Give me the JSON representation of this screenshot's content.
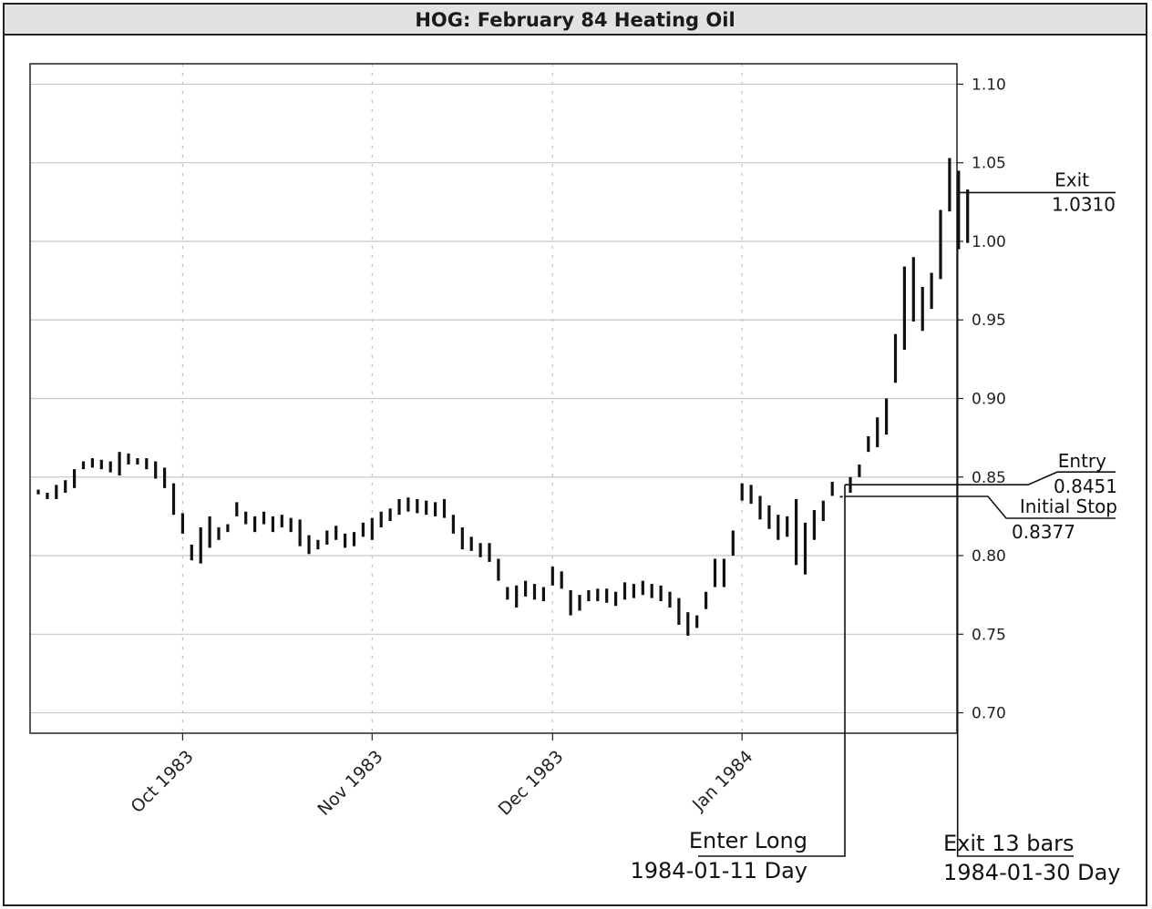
{
  "chart_data": {
    "type": "ohlc-bar",
    "title": "HOG: February 84 Heating Oil",
    "ylim": [
      0.687,
      1.113
    ],
    "y_ticks": [
      "1.10",
      "1.05",
      "1.00",
      "0.95",
      "0.90",
      "0.85",
      "0.80",
      "0.75",
      "0.70"
    ],
    "y_tick_values": [
      1.1,
      1.05,
      1.0,
      0.95,
      0.9,
      0.85,
      0.8,
      0.75,
      0.7
    ],
    "x_ticks": [
      "Oct 1983",
      "Nov 1983",
      "Dec 1983",
      "Jan 1984"
    ],
    "x_tick_bar_index": [
      16,
      37,
      57,
      78
    ],
    "grid": true,
    "bars": [
      [
        0.842,
        0.839
      ],
      [
        0.84,
        0.836
      ],
      [
        0.845,
        0.836
      ],
      [
        0.848,
        0.84
      ],
      [
        0.855,
        0.843
      ],
      [
        0.86,
        0.855
      ],
      [
        0.862,
        0.856
      ],
      [
        0.861,
        0.855
      ],
      [
        0.86,
        0.853
      ],
      [
        0.866,
        0.851
      ],
      [
        0.865,
        0.858
      ],
      [
        0.862,
        0.858
      ],
      [
        0.862,
        0.855
      ],
      [
        0.86,
        0.849
      ],
      [
        0.856,
        0.843
      ],
      [
        0.846,
        0.826
      ],
      [
        0.827,
        0.814
      ],
      [
        0.807,
        0.797
      ],
      [
        0.818,
        0.795
      ],
      [
        0.825,
        0.805
      ],
      [
        0.818,
        0.81
      ],
      [
        0.82,
        0.815
      ],
      [
        0.834,
        0.825
      ],
      [
        0.828,
        0.82
      ],
      [
        0.825,
        0.815
      ],
      [
        0.828,
        0.82
      ],
      [
        0.825,
        0.815
      ],
      [
        0.826,
        0.818
      ],
      [
        0.824,
        0.815
      ],
      [
        0.823,
        0.806
      ],
      [
        0.813,
        0.801
      ],
      [
        0.81,
        0.804
      ],
      [
        0.816,
        0.807
      ],
      [
        0.819,
        0.81
      ],
      [
        0.814,
        0.805
      ],
      [
        0.815,
        0.806
      ],
      [
        0.821,
        0.812
      ],
      [
        0.824,
        0.81
      ],
      [
        0.828,
        0.818
      ],
      [
        0.83,
        0.822
      ],
      [
        0.836,
        0.826
      ],
      [
        0.837,
        0.828
      ],
      [
        0.836,
        0.827
      ],
      [
        0.835,
        0.826
      ],
      [
        0.834,
        0.825
      ],
      [
        0.836,
        0.824
      ],
      [
        0.826,
        0.814
      ],
      [
        0.818,
        0.804
      ],
      [
        0.812,
        0.803
      ],
      [
        0.808,
        0.799
      ],
      [
        0.808,
        0.796
      ],
      [
        0.798,
        0.784
      ],
      [
        0.78,
        0.772
      ],
      [
        0.781,
        0.767
      ],
      [
        0.784,
        0.774
      ],
      [
        0.782,
        0.772
      ],
      [
        0.78,
        0.771
      ],
      [
        0.793,
        0.781
      ],
      [
        0.79,
        0.779
      ],
      [
        0.778,
        0.762
      ],
      [
        0.775,
        0.765
      ],
      [
        0.778,
        0.771
      ],
      [
        0.779,
        0.771
      ],
      [
        0.779,
        0.77
      ],
      [
        0.777,
        0.768
      ],
      [
        0.783,
        0.772
      ],
      [
        0.782,
        0.773
      ],
      [
        0.784,
        0.775
      ],
      [
        0.782,
        0.773
      ],
      [
        0.781,
        0.771
      ],
      [
        0.777,
        0.767
      ],
      [
        0.773,
        0.756
      ],
      [
        0.764,
        0.749
      ],
      [
        0.762,
        0.754
      ],
      [
        0.777,
        0.766
      ],
      [
        0.798,
        0.78
      ],
      [
        0.798,
        0.78
      ],
      [
        0.816,
        0.8
      ],
      [
        0.846,
        0.835
      ],
      [
        0.845,
        0.833
      ],
      [
        0.838,
        0.823
      ],
      [
        0.832,
        0.817
      ],
      [
        0.826,
        0.81
      ],
      [
        0.825,
        0.812
      ],
      [
        0.836,
        0.794
      ],
      [
        0.821,
        0.788
      ],
      [
        0.829,
        0.81
      ],
      [
        0.835,
        0.822
      ],
      [
        0.847,
        0.838
      ],
      [
        0.838,
        0.837
      ],
      [
        0.85,
        0.84
      ],
      [
        0.858,
        0.85
      ],
      [
        0.876,
        0.866
      ],
      [
        0.888,
        0.869
      ],
      [
        0.9,
        0.877
      ],
      [
        0.941,
        0.91
      ],
      [
        0.984,
        0.931
      ],
      [
        0.99,
        0.949
      ],
      [
        0.971,
        0.943
      ],
      [
        0.98,
        0.957
      ],
      [
        1.02,
        0.976
      ],
      [
        1.053,
        1.019
      ],
      [
        1.045,
        0.995
      ],
      [
        1.033,
        0.999
      ]
    ],
    "annotations": {
      "entry_label": "Entry",
      "entry_value": "0.8451",
      "entry_price": 0.8451,
      "stop_label": "Initial Stop",
      "stop_value": "0.8377",
      "stop_price": 0.8377,
      "exit_label": "Exit",
      "exit_value": "1.0310",
      "exit_price": 1.031,
      "enter_signal": "Enter Long",
      "enter_date": "1984-01-11 Day",
      "exit_signal": "Exit 13 bars",
      "exit_date": "1984-01-30 Day",
      "entry_bar_index": 90,
      "exit_bar_index": 103
    }
  }
}
